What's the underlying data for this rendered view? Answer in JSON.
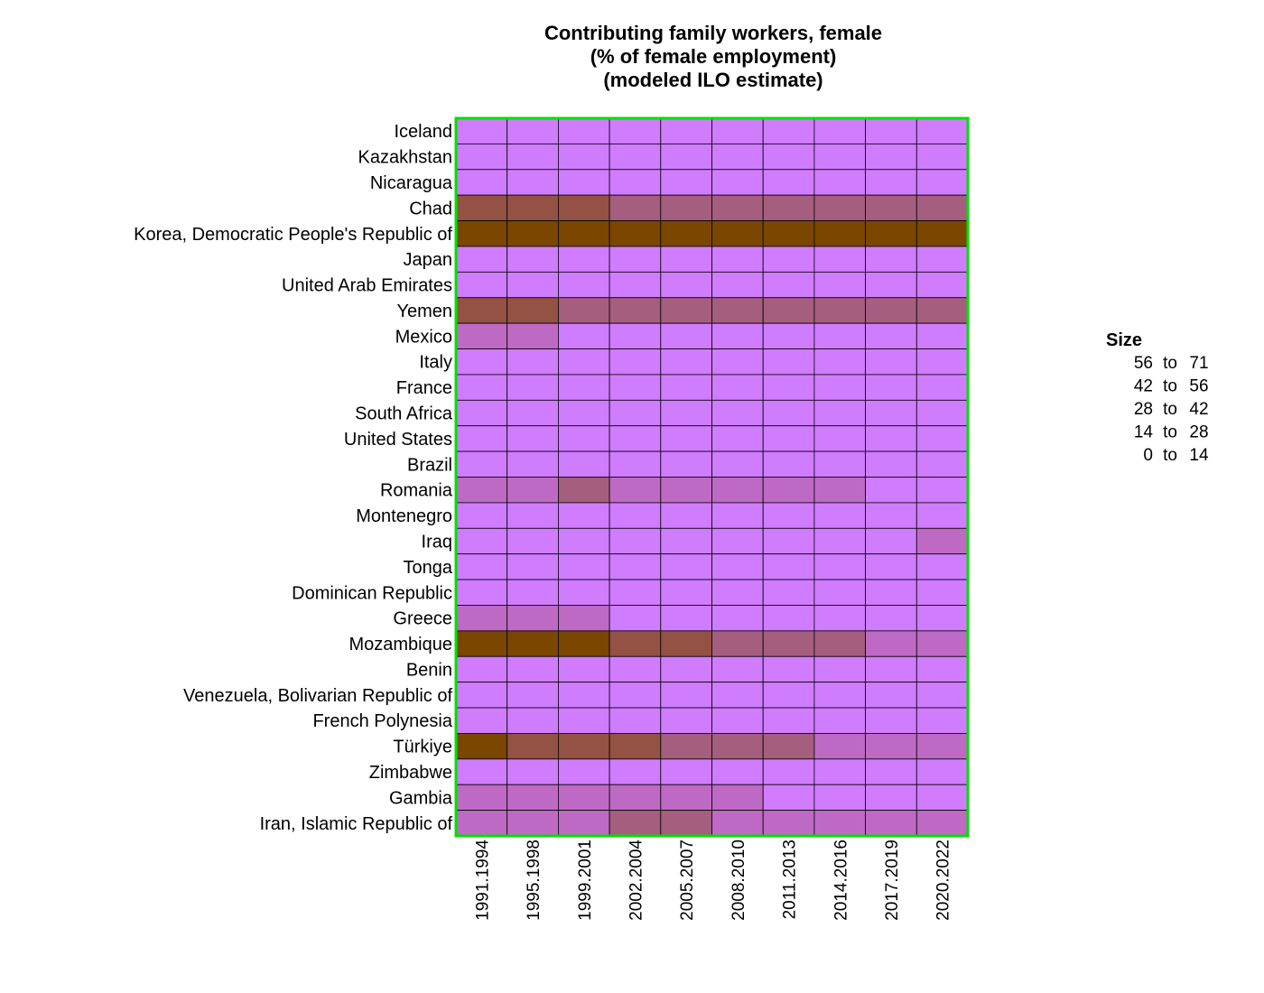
{
  "chart_data": {
    "type": "heatmap",
    "title": [
      "Contributing family workers, female",
      "(% of female employment)",
      "(modeled ILO estimate)"
    ],
    "columns": [
      "1991.1994",
      "1995.1998",
      "1999.2001",
      "2002.2004",
      "2005.2007",
      "2008.2010",
      "2011.2013",
      "2014.2016",
      "2017.2019",
      "2020.2022"
    ],
    "rows": [
      "Iceland",
      "Kazakhstan",
      "Nicaragua",
      "Chad",
      "Korea, Democratic People's Republic of",
      "Japan",
      "United Arab Emirates",
      "Yemen",
      "Mexico",
      "Italy",
      "France",
      "South Africa",
      "United States",
      "Brazil",
      "Romania",
      "Montenegro",
      "Iraq",
      "Tonga",
      "Dominican Republic",
      "Greece",
      "Mozambique",
      "Benin",
      "Venezuela, Bolivarian Republic of",
      "French Polynesia",
      "Türkiye",
      "Zimbabwe",
      "Gambia",
      "Iran, Islamic Republic of"
    ],
    "values": [
      [
        0,
        0,
        0,
        0,
        0,
        0,
        0,
        0,
        0,
        0
      ],
      [
        0,
        0,
        0,
        0,
        0,
        0,
        0,
        0,
        0,
        0
      ],
      [
        0,
        0,
        0,
        0,
        0,
        0,
        0,
        0,
        0,
        0
      ],
      [
        3,
        3,
        3,
        2,
        2,
        2,
        2,
        2,
        2,
        2
      ],
      [
        4,
        4,
        4,
        4,
        4,
        4,
        4,
        4,
        4,
        4
      ],
      [
        0,
        0,
        0,
        0,
        0,
        0,
        0,
        0,
        0,
        0
      ],
      [
        0,
        0,
        0,
        0,
        0,
        0,
        0,
        0,
        0,
        0
      ],
      [
        3,
        3,
        2,
        2,
        2,
        2,
        2,
        2,
        2,
        2
      ],
      [
        1,
        1,
        0,
        0,
        0,
        0,
        0,
        0,
        0,
        0
      ],
      [
        0,
        0,
        0,
        0,
        0,
        0,
        0,
        0,
        0,
        0
      ],
      [
        0,
        0,
        0,
        0,
        0,
        0,
        0,
        0,
        0,
        0
      ],
      [
        0,
        0,
        0,
        0,
        0,
        0,
        0,
        0,
        0,
        0
      ],
      [
        0,
        0,
        0,
        0,
        0,
        0,
        0,
        0,
        0,
        0
      ],
      [
        0,
        0,
        0,
        0,
        0,
        0,
        0,
        0,
        0,
        0
      ],
      [
        1,
        1,
        2,
        1,
        1,
        1,
        1,
        1,
        0,
        0
      ],
      [
        0,
        0,
        0,
        0,
        0,
        0,
        0,
        0,
        0,
        0
      ],
      [
        0,
        0,
        0,
        0,
        0,
        0,
        0,
        0,
        0,
        1
      ],
      [
        0,
        0,
        0,
        0,
        0,
        0,
        0,
        0,
        0,
        0
      ],
      [
        0,
        0,
        0,
        0,
        0,
        0,
        0,
        0,
        0,
        0
      ],
      [
        1,
        1,
        1,
        0,
        0,
        0,
        0,
        0,
        0,
        0
      ],
      [
        4,
        4,
        4,
        3,
        3,
        2,
        2,
        2,
        1,
        1
      ],
      [
        0,
        0,
        0,
        0,
        0,
        0,
        0,
        0,
        0,
        0
      ],
      [
        0,
        0,
        0,
        0,
        0,
        0,
        0,
        0,
        0,
        0
      ],
      [
        0,
        0,
        0,
        0,
        0,
        0,
        0,
        0,
        0,
        0
      ],
      [
        4,
        3,
        3,
        3,
        2,
        2,
        2,
        1,
        1,
        1
      ],
      [
        0,
        0,
        0,
        0,
        0,
        0,
        0,
        0,
        0,
        0
      ],
      [
        1,
        1,
        1,
        1,
        1,
        1,
        0,
        0,
        0,
        0
      ],
      [
        1,
        1,
        1,
        2,
        2,
        1,
        1,
        1,
        1,
        1
      ]
    ],
    "bins": [
      {
        "label_from": "56",
        "label_to": "71",
        "color": "#7b4600"
      },
      {
        "label_from": "42",
        "label_to": "56",
        "color": "#935243"
      },
      {
        "label_from": "28",
        "label_to": "42",
        "color": "#a55e7e"
      },
      {
        "label_from": "14",
        "label_to": "28",
        "color": "#be6ac5"
      },
      {
        "label_from": "0",
        "label_to": "14",
        "color": "#d07cfe"
      }
    ],
    "legend": {
      "title": "Size",
      "word": "to",
      "placement": "right"
    },
    "colors": {
      "border": "#00e000",
      "gridline": "#000000"
    }
  }
}
